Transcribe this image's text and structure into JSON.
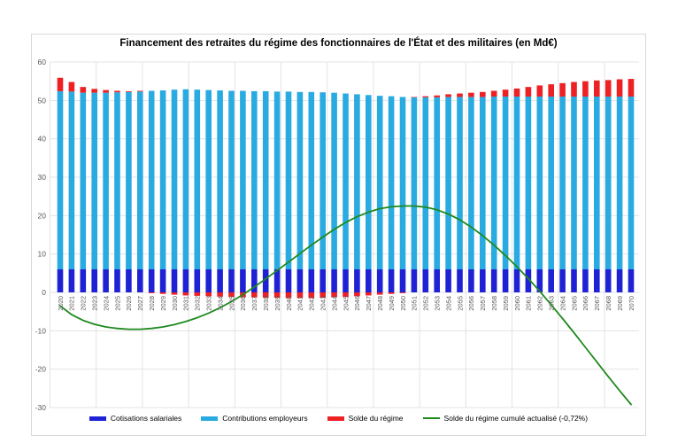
{
  "title": "Financement des retraites du régime des fonctionnaires de l'État et des militaires (en Md€)",
  "colors": {
    "background": "#FFFFFF",
    "border": "#D9D9D9",
    "grid": "#E3E3E3",
    "axis_text": "#595959",
    "cotisations": "#1E22D4",
    "contributions": "#29ABE2",
    "solde": "#ED2024",
    "cumul_line": "#1E8A1E"
  },
  "legend": [
    {
      "label": "Cotisations salariales",
      "color": "#1E22D4",
      "type": "bar"
    },
    {
      "label": "Contributions employeurs",
      "color": "#29ABE2",
      "type": "bar"
    },
    {
      "label": "Solde du régime",
      "color": "#ED2024",
      "type": "bar"
    },
    {
      "label": "Solde du régime cumulé actualisé (-0,72%)",
      "color": "#1E8A1E",
      "type": "line"
    }
  ],
  "chart_data": {
    "type": "bar",
    "subtype": "stacked-bars-with-line",
    "title": "Financement des retraites du régime des fonctionnaires de l'État et des militaires (en Md€)",
    "xlabel": "",
    "ylabel": "",
    "ylim": [
      -30,
      60
    ],
    "yticks": [
      60,
      50,
      40,
      30,
      20,
      10,
      0,
      -10,
      -20,
      -30
    ],
    "grid": true,
    "legend_position": "bottom",
    "categories": [
      2020,
      2021,
      2022,
      2023,
      2024,
      2025,
      2026,
      2027,
      2028,
      2029,
      2030,
      2031,
      2032,
      2033,
      2034,
      2035,
      2036,
      2037,
      2038,
      2039,
      2040,
      2041,
      2042,
      2043,
      2044,
      2045,
      2046,
      2047,
      2048,
      2049,
      2050,
      2051,
      2052,
      2053,
      2054,
      2055,
      2056,
      2057,
      2058,
      2059,
      2060,
      2061,
      2062,
      2063,
      2064,
      2065,
      2066,
      2067,
      2068,
      2069,
      2070
    ],
    "series": [
      {
        "name": "Cotisations salariales",
        "type": "bar",
        "color": "#1E22D4",
        "values": [
          6,
          6,
          6,
          6,
          6,
          6,
          6,
          6,
          6,
          6,
          6,
          6,
          6,
          6,
          6,
          6,
          6,
          6,
          6,
          6,
          6,
          6,
          6,
          6,
          6,
          6,
          6,
          6,
          6,
          6,
          6,
          6,
          6,
          6,
          6,
          6,
          6,
          6,
          6,
          6,
          6,
          6,
          6,
          6,
          6,
          6,
          6,
          6,
          6,
          6,
          6
        ]
      },
      {
        "name": "Contributions employeurs",
        "type": "bar",
        "color": "#29ABE2",
        "values": [
          46.4,
          46.3,
          46.0,
          46.0,
          46.0,
          46.1,
          46.2,
          46.3,
          46.5,
          46.6,
          46.8,
          46.9,
          46.8,
          46.7,
          46.6,
          46.5,
          46.5,
          46.4,
          46.4,
          46.3,
          46.3,
          46.2,
          46.2,
          46.1,
          46.0,
          45.8,
          45.6,
          45.4,
          45.2,
          45.1,
          44.9,
          44.8,
          44.8,
          44.8,
          44.9,
          44.9,
          44.9,
          44.9,
          45.0,
          45.0,
          45.0,
          45.0,
          45.0,
          45.0,
          45.0,
          45.0,
          45.0,
          45.0,
          45.0,
          45.0,
          45.0
        ]
      },
      {
        "name": "Solde du régime",
        "type": "bar",
        "color": "#ED2024",
        "values": [
          3.5,
          2.5,
          1.5,
          1.0,
          0.7,
          0.4,
          0.2,
          0.2,
          -0.2,
          -0.4,
          -0.6,
          -0.8,
          -0.9,
          -1.0,
          -1.1,
          -1.2,
          -1.3,
          -1.3,
          -1.4,
          -1.4,
          -1.5,
          -1.5,
          -1.5,
          -1.4,
          -1.3,
          -1.2,
          -1.0,
          -0.8,
          -0.6,
          -0.4,
          -0.2,
          0.1,
          0.3,
          0.5,
          0.7,
          0.9,
          1.1,
          1.3,
          1.5,
          1.8,
          2.1,
          2.5,
          2.9,
          3.2,
          3.5,
          3.8,
          4.0,
          4.2,
          4.3,
          4.5,
          4.6
        ]
      },
      {
        "name": "Solde du régime cumulé actualisé (-0,72%)",
        "type": "line",
        "color": "#1E8A1E",
        "values": [
          -3.5,
          -5.8,
          -7.3,
          -8.3,
          -9.0,
          -9.4,
          -9.6,
          -9.6,
          -9.4,
          -9.0,
          -8.4,
          -7.6,
          -6.6,
          -5.4,
          -4.0,
          -2.4,
          -0.6,
          1.4,
          3.5,
          5.7,
          7.9,
          10.1,
          12.3,
          14.4,
          16.4,
          18.2,
          19.7,
          20.9,
          21.8,
          22.3,
          22.5,
          22.5,
          22.2,
          21.5,
          20.4,
          18.9,
          17.0,
          14.8,
          12.3,
          9.6,
          6.7,
          3.6,
          0.3,
          -3.2,
          -6.8,
          -10.5,
          -14.3,
          -18.1,
          -21.9,
          -25.6,
          -29.2
        ]
      }
    ]
  }
}
